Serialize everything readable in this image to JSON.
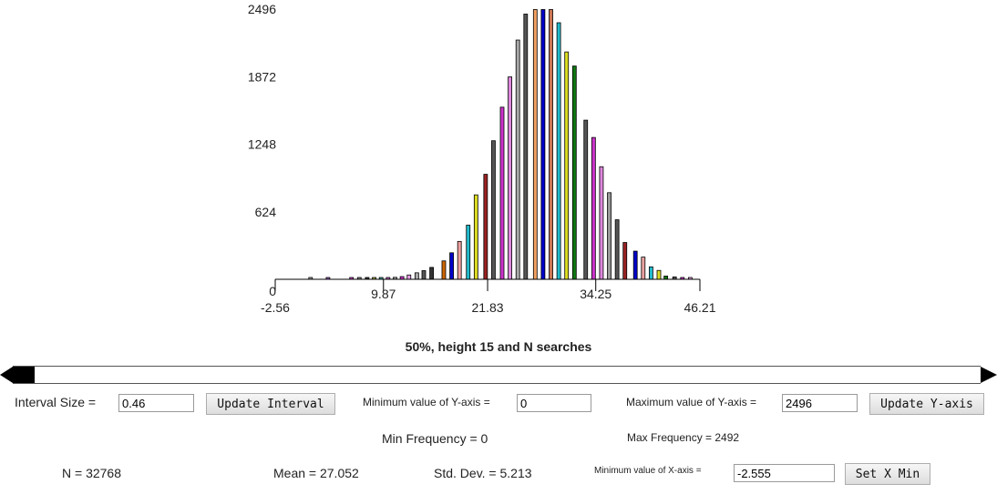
{
  "chart_data": {
    "type": "bar",
    "title": "50%, height 15 and N searches",
    "y_ticks": [
      "0",
      "624",
      "1248",
      "1872",
      "2496"
    ],
    "x_ticks": [
      "-2.56",
      "9.87",
      "21.83",
      "34.25",
      "46.21"
    ],
    "x_tick_values": [
      -2.56,
      9.87,
      21.83,
      34.25,
      46.21
    ],
    "ylim": [
      0,
      2496
    ],
    "xlim": [
      -2.56,
      46.21
    ],
    "grid": false,
    "bars": [
      {
        "x": 1.5,
        "value": 5,
        "color": "#a0a0a0"
      },
      {
        "x": 3.5,
        "value": 5,
        "color": "#9c5cc8"
      },
      {
        "x": 6.2,
        "value": 8,
        "color": "#cc44cc"
      },
      {
        "x": 7.1,
        "value": 8,
        "color": "#888888"
      },
      {
        "x": 8.0,
        "value": 10,
        "color": "#333333"
      },
      {
        "x": 8.8,
        "value": 10,
        "color": "#aaaa44"
      },
      {
        "x": 9.6,
        "value": 12,
        "color": "#44aaaa"
      },
      {
        "x": 10.4,
        "value": 12,
        "color": "#cc66cc"
      },
      {
        "x": 11.2,
        "value": 18,
        "color": "#a0a0a0"
      },
      {
        "x": 12.0,
        "value": 25,
        "color": "#cc33cc"
      },
      {
        "x": 12.8,
        "value": 40,
        "color": "#e8a0e8"
      },
      {
        "x": 13.7,
        "value": 60,
        "color": "#aaaaaa"
      },
      {
        "x": 14.5,
        "value": 80,
        "color": "#555555"
      },
      {
        "x": 15.4,
        "value": 110,
        "color": "#333333"
      },
      {
        "x": 16.8,
        "value": 170,
        "color": "#cc6600"
      },
      {
        "x": 17.7,
        "value": 245,
        "color": "#0000cc"
      },
      {
        "x": 18.6,
        "value": 350,
        "color": "#f0a0a0"
      },
      {
        "x": 19.6,
        "value": 500,
        "color": "#22bbcc"
      },
      {
        "x": 20.5,
        "value": 780,
        "color": "#dddd22"
      },
      {
        "x": 21.6,
        "value": 970,
        "color": "#992222"
      },
      {
        "x": 22.5,
        "value": 1280,
        "color": "#555555"
      },
      {
        "x": 23.5,
        "value": 1590,
        "color": "#cc33cc"
      },
      {
        "x": 24.4,
        "value": 1870,
        "color": "#dd88dd"
      },
      {
        "x": 25.3,
        "value": 2210,
        "color": "#aaaaaa"
      },
      {
        "x": 26.2,
        "value": 2450,
        "color": "#555555"
      },
      {
        "x": 27.3,
        "value": 2492,
        "color": "#f0a060"
      },
      {
        "x": 28.2,
        "value": 2492,
        "color": "#0000cc"
      },
      {
        "x": 29.1,
        "value": 2492,
        "color": "#cc7755"
      },
      {
        "x": 30.0,
        "value": 2370,
        "color": "#22bbcc"
      },
      {
        "x": 30.9,
        "value": 2100,
        "color": "#dddd22"
      },
      {
        "x": 31.8,
        "value": 1970,
        "color": "#117711"
      },
      {
        "x": 33.1,
        "value": 1470,
        "color": "#555555"
      },
      {
        "x": 34.0,
        "value": 1310,
        "color": "#cc33cc"
      },
      {
        "x": 34.9,
        "value": 1040,
        "color": "#dd88dd"
      },
      {
        "x": 35.8,
        "value": 800,
        "color": "#999999"
      },
      {
        "x": 36.7,
        "value": 550,
        "color": "#555555"
      },
      {
        "x": 37.6,
        "value": 340,
        "color": "#992222"
      },
      {
        "x": 38.8,
        "value": 260,
        "color": "#0000cc"
      },
      {
        "x": 39.7,
        "value": 205,
        "color": "#e8a0a0"
      },
      {
        "x": 40.6,
        "value": 115,
        "color": "#22bbcc"
      },
      {
        "x": 41.5,
        "value": 82,
        "color": "#dddd22"
      },
      {
        "x": 42.3,
        "value": 30,
        "color": "#117711"
      },
      {
        "x": 43.3,
        "value": 22,
        "color": "#555555"
      },
      {
        "x": 44.2,
        "value": 12,
        "color": "#cc33cc"
      },
      {
        "x": 45.1,
        "value": 5,
        "color": "#e8a0e8"
      }
    ]
  },
  "controls": {
    "interval_label": "Interval Size =",
    "interval_value": "0.46",
    "update_interval_button": "Update Interval",
    "min_y_label": "Minimum value of Y-axis =",
    "min_y_value": "0",
    "max_y_label": "Maximum value of Y-axis =",
    "max_y_value": "2496",
    "update_y_button": "Update Y-axis",
    "min_frequency": "Min Frequency = 0",
    "max_frequency": "Max Frequency = 2492",
    "n_text": "N = 32768",
    "mean_text": "Mean = 27.052",
    "std_text": "Std. Dev. = 5.213",
    "min_x_label": "Minimum value of X-axis =",
    "min_x_value": "-2.555",
    "set_x_min_button": "Set X Min"
  }
}
